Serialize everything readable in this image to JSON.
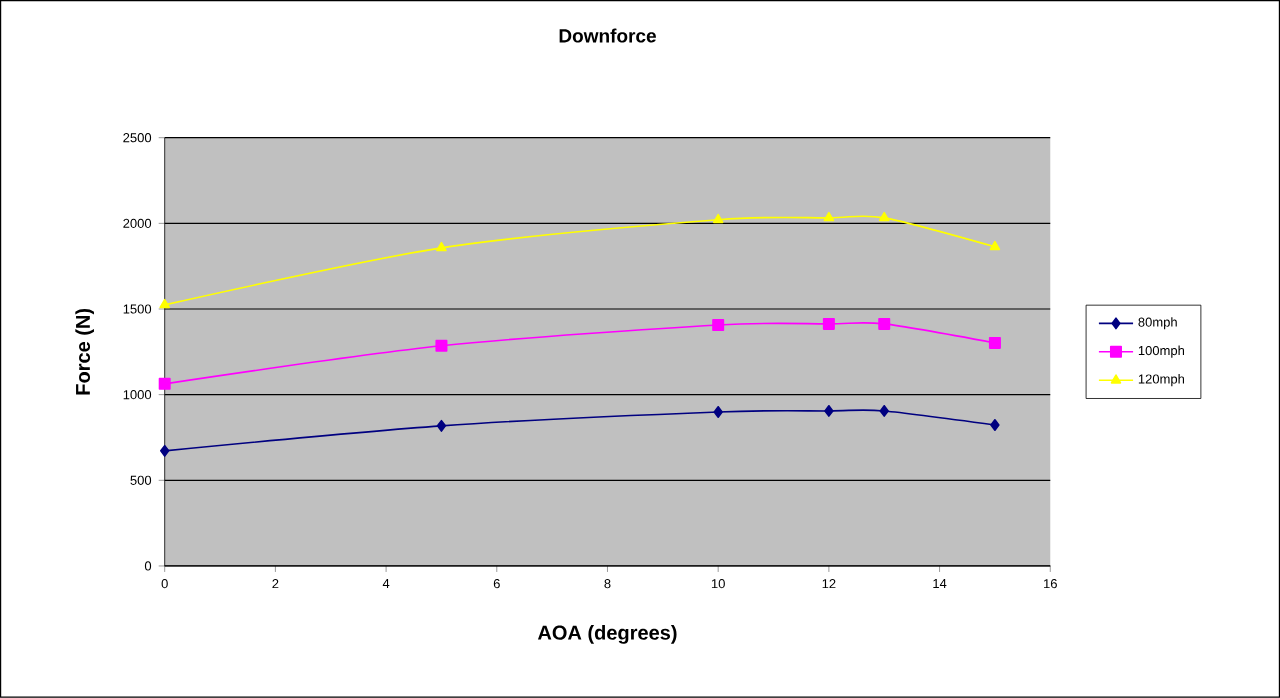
{
  "chart_data": {
    "type": "line",
    "title": "Downforce",
    "xlabel": "AOA (degrees)",
    "ylabel": "Force (N)",
    "x": [
      0,
      5,
      10,
      12,
      13,
      15
    ],
    "series": [
      {
        "name": "80mph",
        "color": "#000080",
        "marker": "diamond",
        "values": [
          672,
          818,
          899,
          905,
          905,
          823
        ]
      },
      {
        "name": "100mph",
        "color": "#ff00ff",
        "marker": "square",
        "values": [
          1063,
          1285,
          1407,
          1413,
          1413,
          1302
        ]
      },
      {
        "name": "120mph",
        "color": "#ffff00",
        "marker": "triangle",
        "values": [
          1524,
          1857,
          2021,
          2032,
          2032,
          1863
        ]
      }
    ],
    "xlim": [
      0,
      16
    ],
    "xticks": [
      0,
      2,
      4,
      6,
      8,
      10,
      12,
      14,
      16
    ],
    "ylim": [
      0,
      2500
    ],
    "yticks": [
      0,
      500,
      1000,
      1500,
      2000,
      2500
    ],
    "grid": "y",
    "legend": "right",
    "line_style": "solid"
  }
}
